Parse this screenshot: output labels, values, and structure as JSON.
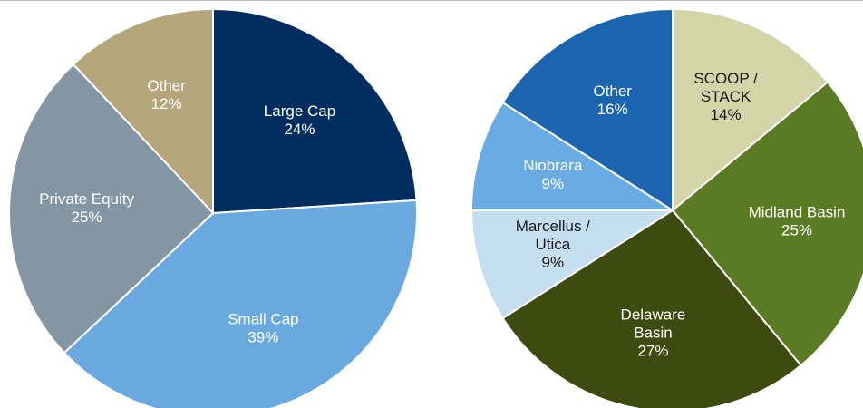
{
  "chart_data": [
    {
      "type": "pie",
      "categories": [
        [
          "Large Cap"
        ],
        [
          "Small Cap"
        ],
        [
          "Private Equity"
        ],
        [
          "Other"
        ]
      ],
      "values": [
        24,
        39,
        25,
        12
      ],
      "value_labels": [
        "24%",
        "39%",
        "25%",
        "12%"
      ],
      "colors": [
        "#002d5f",
        "#6aa9e0",
        "#8496a4",
        "#b5a57a"
      ]
    },
    {
      "type": "pie",
      "categories": [
        [
          "SCOOP /",
          "STACK"
        ],
        [
          "Midland Basin"
        ],
        [
          "Delaware",
          "Basin"
        ],
        [
          "Marcellus /",
          "Utica"
        ],
        [
          "Niobrara"
        ],
        [
          "Other"
        ]
      ],
      "values": [
        14,
        25,
        27,
        9,
        9,
        16
      ],
      "value_labels": [
        "14%",
        "25%",
        "27%",
        "9%",
        "9%",
        "16%"
      ],
      "colors": [
        "#d3d4a8",
        "#5a7a23",
        "#3f4a10",
        "#c6dff0",
        "#6aabe3",
        "#1a64b0"
      ]
    }
  ]
}
